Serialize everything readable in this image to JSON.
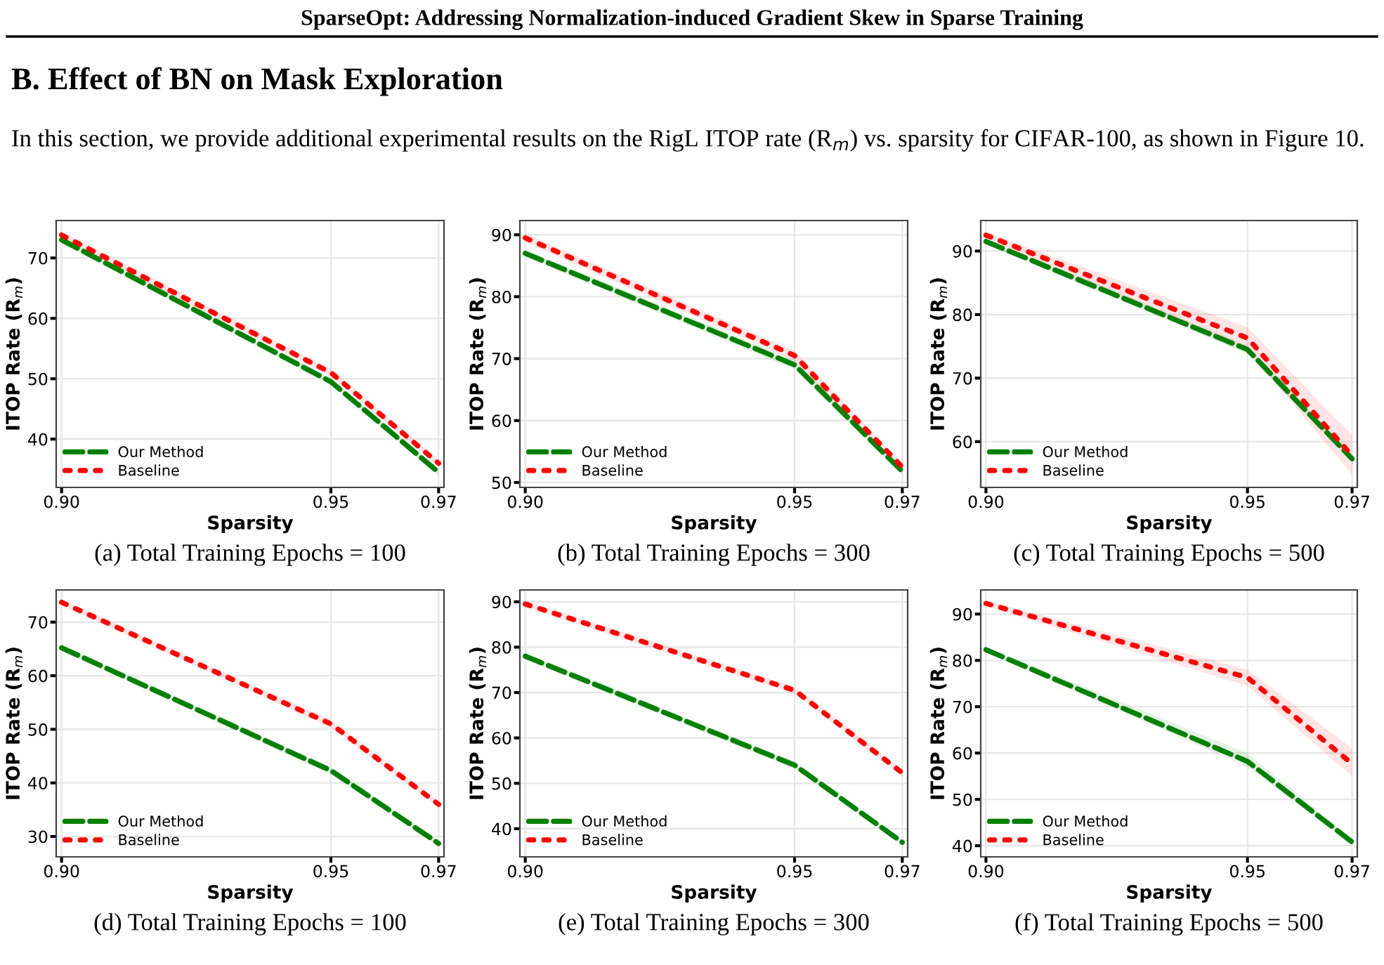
{
  "chart_data": [
    {
      "type": "line",
      "xlabel": "Sparsity",
      "ylabel": "ITOP Rate (R$_{m}$)",
      "x": [
        0.9,
        0.95,
        0.97
      ],
      "xlim": [
        0.899,
        0.971
      ],
      "xticks": [
        {
          "value": 0.9,
          "label": "0.90"
        },
        {
          "value": 0.95,
          "label": "0.95"
        },
        {
          "value": 0.97,
          "label": "0.97"
        }
      ],
      "ylim": [
        32,
        76.2
      ],
      "yticks": [
        40,
        50,
        60,
        70
      ],
      "grid": true,
      "legend": "bottom left",
      "series": [
        {
          "name": "Our Method",
          "color": "#008000",
          "line_style": "dashed",
          "values": [
            73,
            49.5,
            34.5
          ],
          "lower": [
            72.4,
            48.9,
            33.9
          ],
          "upper": [
            73.6,
            50.1,
            35.1
          ]
        },
        {
          "name": "Baseline",
          "color": "#ff0000",
          "line_style": "dotted",
          "values": [
            73.8,
            51,
            36
          ],
          "lower": [
            73.2,
            50.4,
            35.4
          ],
          "upper": [
            74.4,
            51.6,
            36.6
          ]
        }
      ],
      "annotations": [
        "SparseOpt: Addressing Normalization-induced Gradient Skew in Sparse Training",
        "B. Effect of BN on Mask Exploration",
        "In this section, we provide additional experimental results on the RigL ITOP rate (R$_{m}$) vs. sparsity for CIFAR-100, as shown in Figure 10.",
        "(a) Total Training Epochs = 100"
      ]
    },
    {
      "type": "line",
      "xlabel": "Sparsity",
      "ylabel": "ITOP Rate (R$_{m}$)",
      "x": [
        0.9,
        0.95,
        0.97
      ],
      "xlim": [
        0.899,
        0.971
      ],
      "xticks": [
        {
          "value": 0.9,
          "label": "0.90"
        },
        {
          "value": 0.95,
          "label": "0.95"
        },
        {
          "value": 0.97,
          "label": "0.97"
        }
      ],
      "ylim": [
        49.2,
        92.3
      ],
      "yticks": [
        50,
        60,
        70,
        80,
        90
      ],
      "grid": true,
      "legend": "bottom left",
      "series": [
        {
          "name": "Our Method",
          "color": "#008000",
          "line_style": "dashed",
          "values": [
            87,
            69,
            51.8
          ],
          "lower": [
            86.4,
            68.2,
            51.2
          ],
          "upper": [
            87.6,
            69.8,
            52.4
          ]
        },
        {
          "name": "Baseline",
          "color": "#ff0000",
          "line_style": "dotted",
          "values": [
            89.5,
            70.5,
            52.5
          ],
          "lower": [
            88.8,
            69.7,
            51.9
          ],
          "upper": [
            90.2,
            71.3,
            53.1
          ]
        }
      ],
      "annotations": [
        "(b) Total Training Epochs = 300"
      ]
    },
    {
      "type": "line",
      "xlabel": "Sparsity",
      "ylabel": "ITOP Rate (R$_{m}$)",
      "x": [
        0.9,
        0.95,
        0.97
      ],
      "xlim": [
        0.899,
        0.971
      ],
      "xticks": [
        {
          "value": 0.9,
          "label": "0.90"
        },
        {
          "value": 0.95,
          "label": "0.95"
        },
        {
          "value": 0.97,
          "label": "0.97"
        }
      ],
      "ylim": [
        52.8,
        94.8
      ],
      "yticks": [
        60,
        70,
        80,
        90
      ],
      "grid": true,
      "legend": "bottom left",
      "series": [
        {
          "name": "Our Method",
          "color": "#008000",
          "line_style": "dashed",
          "values": [
            91.5,
            74.5,
            57.3
          ],
          "lower": [
            91,
            73.8,
            56.7
          ],
          "upper": [
            92,
            75.2,
            57.9
          ]
        },
        {
          "name": "Baseline",
          "color": "#ff0000",
          "line_style": "dotted",
          "values": [
            92.5,
            76.3,
            57.8
          ],
          "lower": [
            92,
            74.5,
            54.8
          ],
          "upper": [
            93,
            78,
            61
          ]
        }
      ],
      "annotations": [
        "(c) Total Training Epochs = 500"
      ]
    },
    {
      "type": "line",
      "xlabel": "Sparsity",
      "ylabel": "ITOP Rate (R$_{m}$)",
      "x": [
        0.9,
        0.95,
        0.97
      ],
      "xlim": [
        0.899,
        0.971
      ],
      "xticks": [
        {
          "value": 0.9,
          "label": "0.90"
        },
        {
          "value": 0.95,
          "label": "0.95"
        },
        {
          "value": 0.97,
          "label": "0.97"
        }
      ],
      "ylim": [
        26.2,
        76
      ],
      "yticks": [
        30,
        40,
        50,
        60,
        70
      ],
      "grid": true,
      "legend": "bottom left",
      "series": [
        {
          "name": "Our Method",
          "color": "#008000",
          "line_style": "dashed",
          "values": [
            65.2,
            42.3,
            28.7
          ],
          "lower": [
            64.6,
            41.6,
            28.1
          ],
          "upper": [
            65.8,
            43,
            29.3
          ]
        },
        {
          "name": "Baseline",
          "color": "#ff0000",
          "line_style": "dotted",
          "values": [
            73.7,
            51,
            36
          ],
          "lower": [
            73.1,
            50.3,
            35.4
          ],
          "upper": [
            74.3,
            51.7,
            36.6
          ]
        }
      ],
      "annotations": [
        "(d) Total Training Epochs = 100"
      ]
    },
    {
      "type": "line",
      "xlabel": "Sparsity",
      "ylabel": "ITOP Rate (R$_{m}$)",
      "x": [
        0.9,
        0.95,
        0.97
      ],
      "xlim": [
        0.899,
        0.971
      ],
      "xticks": [
        {
          "value": 0.9,
          "label": "0.90"
        },
        {
          "value": 0.95,
          "label": "0.95"
        },
        {
          "value": 0.97,
          "label": "0.97"
        }
      ],
      "ylim": [
        33.8,
        92.6
      ],
      "yticks": [
        40,
        50,
        60,
        70,
        80,
        90
      ],
      "grid": true,
      "legend": "bottom left",
      "series": [
        {
          "name": "Our Method",
          "color": "#008000",
          "line_style": "dashed",
          "values": [
            78,
            54,
            37
          ],
          "lower": [
            77.2,
            53.2,
            36.4
          ],
          "upper": [
            78.8,
            54.8,
            37.6
          ]
        },
        {
          "name": "Baseline",
          "color": "#ff0000",
          "line_style": "dotted",
          "values": [
            89.5,
            70.5,
            52.3
          ],
          "lower": [
            88.8,
            69.7,
            51.6
          ],
          "upper": [
            90.2,
            71.3,
            53
          ]
        }
      ],
      "annotations": [
        "(e) Total Training Epochs = 300"
      ]
    },
    {
      "type": "line",
      "xlabel": "Sparsity",
      "ylabel": "ITOP Rate (R$_{m}$)",
      "x": [
        0.9,
        0.95,
        0.97
      ],
      "xlim": [
        0.899,
        0.971
      ],
      "xticks": [
        {
          "value": 0.9,
          "label": "0.90"
        },
        {
          "value": 0.95,
          "label": "0.95"
        },
        {
          "value": 0.97,
          "label": "0.97"
        }
      ],
      "ylim": [
        37.6,
        95.2
      ],
      "yticks": [
        40,
        50,
        60,
        70,
        80,
        90
      ],
      "grid": true,
      "legend": "bottom left",
      "series": [
        {
          "name": "Our Method",
          "color": "#008000",
          "line_style": "dashed",
          "values": [
            82.3,
            58.2,
            40.8
          ],
          "lower": [
            81.7,
            57,
            40.3
          ],
          "upper": [
            82.9,
            60,
            41.5
          ]
        },
        {
          "name": "Baseline",
          "color": "#ff0000",
          "line_style": "dotted",
          "values": [
            92.3,
            76.3,
            57.7
          ],
          "lower": [
            91.7,
            74.5,
            55
          ],
          "upper": [
            92.9,
            78,
            61
          ]
        }
      ],
      "annotations": [
        "(f) Total Training Epochs = 500"
      ]
    }
  ]
}
